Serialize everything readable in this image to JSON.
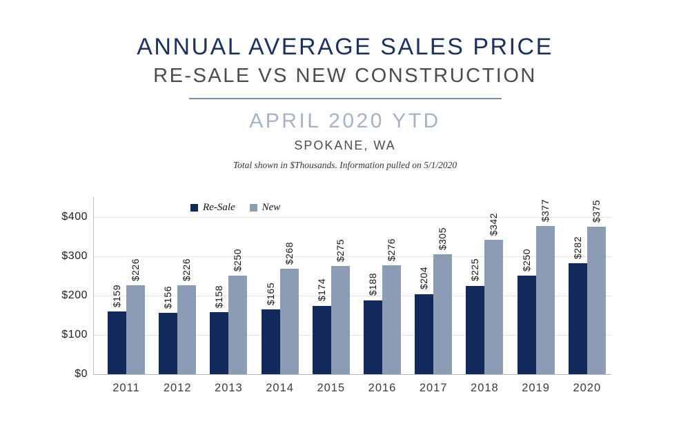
{
  "header": {
    "title": "ANNUAL AVERAGE SALES PRICE",
    "subtitle": "RE-SALE VS NEW CONSTRUCTION",
    "period": "APRIL 2020 YTD",
    "location": "SPOKANE, WA",
    "note": "Total shown in $Thousands. Information pulled on 5/1/2020"
  },
  "chart_data": {
    "type": "bar",
    "title": "Annual Average Sales Price, Re-Sale vs New Construction, April 2020 YTD, Spokane WA",
    "categories": [
      "2011",
      "2012",
      "2013",
      "2014",
      "2015",
      "2016",
      "2017",
      "2018",
      "2019",
      "2020"
    ],
    "series": [
      {
        "name": "Re-Sale",
        "color": "#12295B",
        "values": [
          159,
          156,
          158,
          165,
          174,
          188,
          204,
          225,
          250,
          282
        ]
      },
      {
        "name": "New",
        "color": "#8C9CB4",
        "values": [
          226,
          226,
          250,
          268,
          275,
          276,
          305,
          342,
          377,
          375
        ]
      }
    ],
    "value_label_prefix": "$",
    "yticks": [
      {
        "label": "$0",
        "value": 0
      },
      {
        "label": "$100",
        "value": 100
      },
      {
        "label": "$200",
        "value": 200
      },
      {
        "label": "$300",
        "value": 300
      },
      {
        "label": "$400",
        "value": 400
      }
    ],
    "ylim": [
      0,
      450
    ],
    "xlabel": "",
    "ylabel": "",
    "grid": true,
    "legend_position": "top-left-inside"
  },
  "colors": {
    "title_navy": "#1d3161",
    "subtitle_gray": "#4a4b4d",
    "period_blue": "#a5b3c9",
    "bar_resale": "#12295B",
    "bar_new": "#8C9CB4",
    "gridline": "#e3e3e3"
  }
}
